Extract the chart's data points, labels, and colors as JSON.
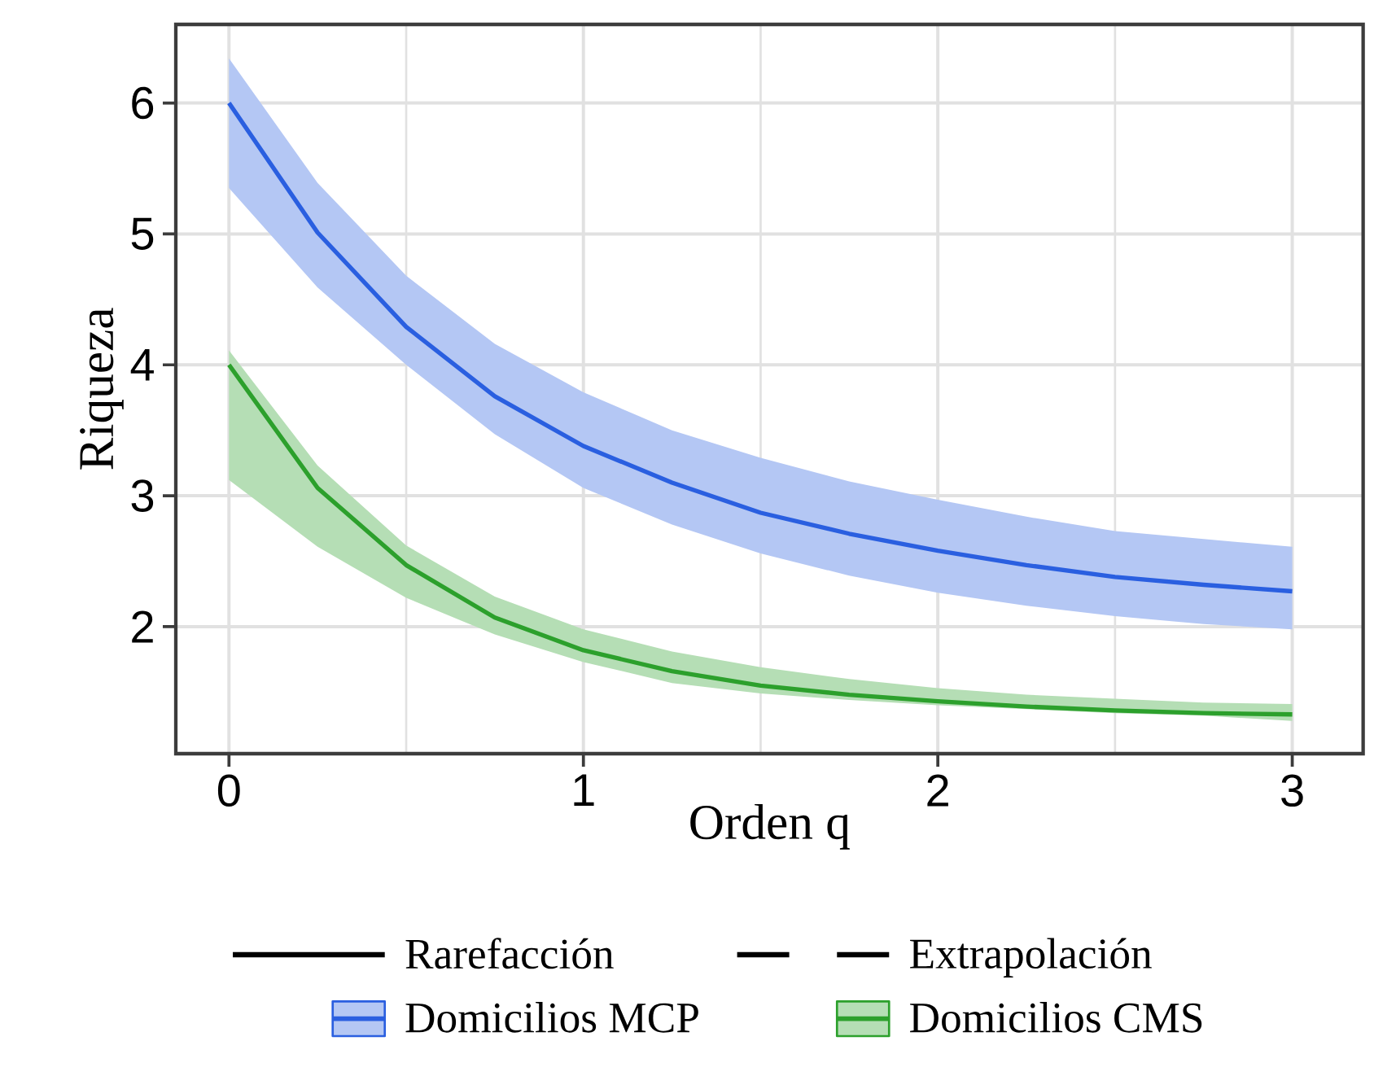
{
  "chart_data": {
    "type": "line",
    "xlabel": "Orden q",
    "ylabel": "Riqueza",
    "x": [
      0,
      0.25,
      0.5,
      0.75,
      1,
      1.25,
      1.5,
      1.75,
      2,
      2.25,
      2.5,
      2.75,
      3
    ],
    "xlim": [
      -0.15,
      3.2
    ],
    "ylim": [
      1.03,
      6.6
    ],
    "xticks": [
      0,
      1,
      2,
      3
    ],
    "yticks": [
      2,
      3,
      4,
      5,
      6
    ],
    "grid": true,
    "legend": "bottom",
    "series": [
      {
        "name": "Rarefacción",
        "color": "#000000",
        "line_style": "solid",
        "values": [
          null,
          null,
          null,
          null,
          null,
          null,
          null,
          null,
          null,
          null,
          null,
          null,
          null
        ]
      },
      {
        "name": "Extrapolación",
        "color": "#000000",
        "line_style": "dashed",
        "values": [
          null,
          null,
          null,
          null,
          null,
          null,
          null,
          null,
          null,
          null,
          null,
          null,
          null
        ]
      },
      {
        "name": "Domicilios MCP",
        "color": "#2a5fe0",
        "values": [
          6.0,
          5.01,
          4.29,
          3.76,
          3.38,
          3.1,
          2.87,
          2.71,
          2.58,
          2.47,
          2.38,
          2.32,
          2.27
        ],
        "upper": [
          6.34,
          5.39,
          4.68,
          4.16,
          3.79,
          3.5,
          3.29,
          3.11,
          2.97,
          2.84,
          2.73,
          2.67,
          2.61
        ],
        "lower": [
          5.35,
          4.59,
          4.0,
          3.47,
          3.06,
          2.78,
          2.56,
          2.39,
          2.26,
          2.16,
          2.08,
          2.02,
          1.98
        ]
      },
      {
        "name": "Domicilios CMS",
        "color": "#2ca02c",
        "values": [
          4.0,
          3.06,
          2.47,
          2.07,
          1.82,
          1.66,
          1.55,
          1.48,
          1.43,
          1.39,
          1.36,
          1.34,
          1.33
        ],
        "upper": [
          4.11,
          3.23,
          2.62,
          2.23,
          1.98,
          1.81,
          1.69,
          1.6,
          1.53,
          1.48,
          1.45,
          1.42,
          1.41
        ],
        "lower": [
          3.12,
          2.61,
          2.22,
          1.94,
          1.73,
          1.57,
          1.49,
          1.44,
          1.4,
          1.37,
          1.34,
          1.32,
          1.28
        ]
      }
    ]
  }
}
